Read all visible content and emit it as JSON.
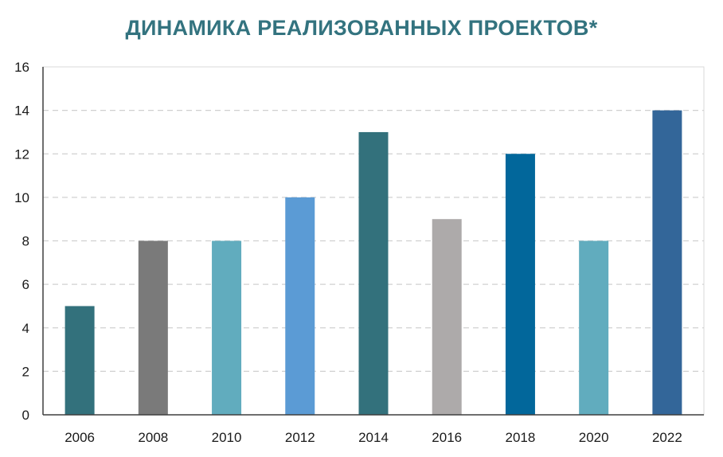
{
  "chart_data": {
    "type": "bar",
    "title": "ДИНАМИКА РЕАЛИЗОВАННЫХ ПРОЕКТОВ*",
    "xlabel": "",
    "ylabel": "",
    "categories": [
      "2006",
      "2008",
      "2010",
      "2012",
      "2014",
      "2016",
      "2018",
      "2020",
      "2022"
    ],
    "values": [
      5,
      8,
      8,
      10,
      13,
      9,
      12,
      8,
      14
    ],
    "ylim": [
      0,
      16
    ],
    "yticks": [
      "0",
      "2",
      "4",
      "6",
      "8",
      "10",
      "12",
      "14",
      "16"
    ],
    "grid": true,
    "legend": "none"
  },
  "colors": {
    "title": "#33737F",
    "bars": [
      "#33717C",
      "#7A7A7A",
      "#61ACBE",
      "#5B9BD5",
      "#33717C",
      "#ADAAAA",
      "#02679B",
      "#61ACBE",
      "#336699"
    ],
    "grid": "#D0D0D0",
    "frame": "#D9D9D9",
    "axis": "#3F3F3F"
  }
}
